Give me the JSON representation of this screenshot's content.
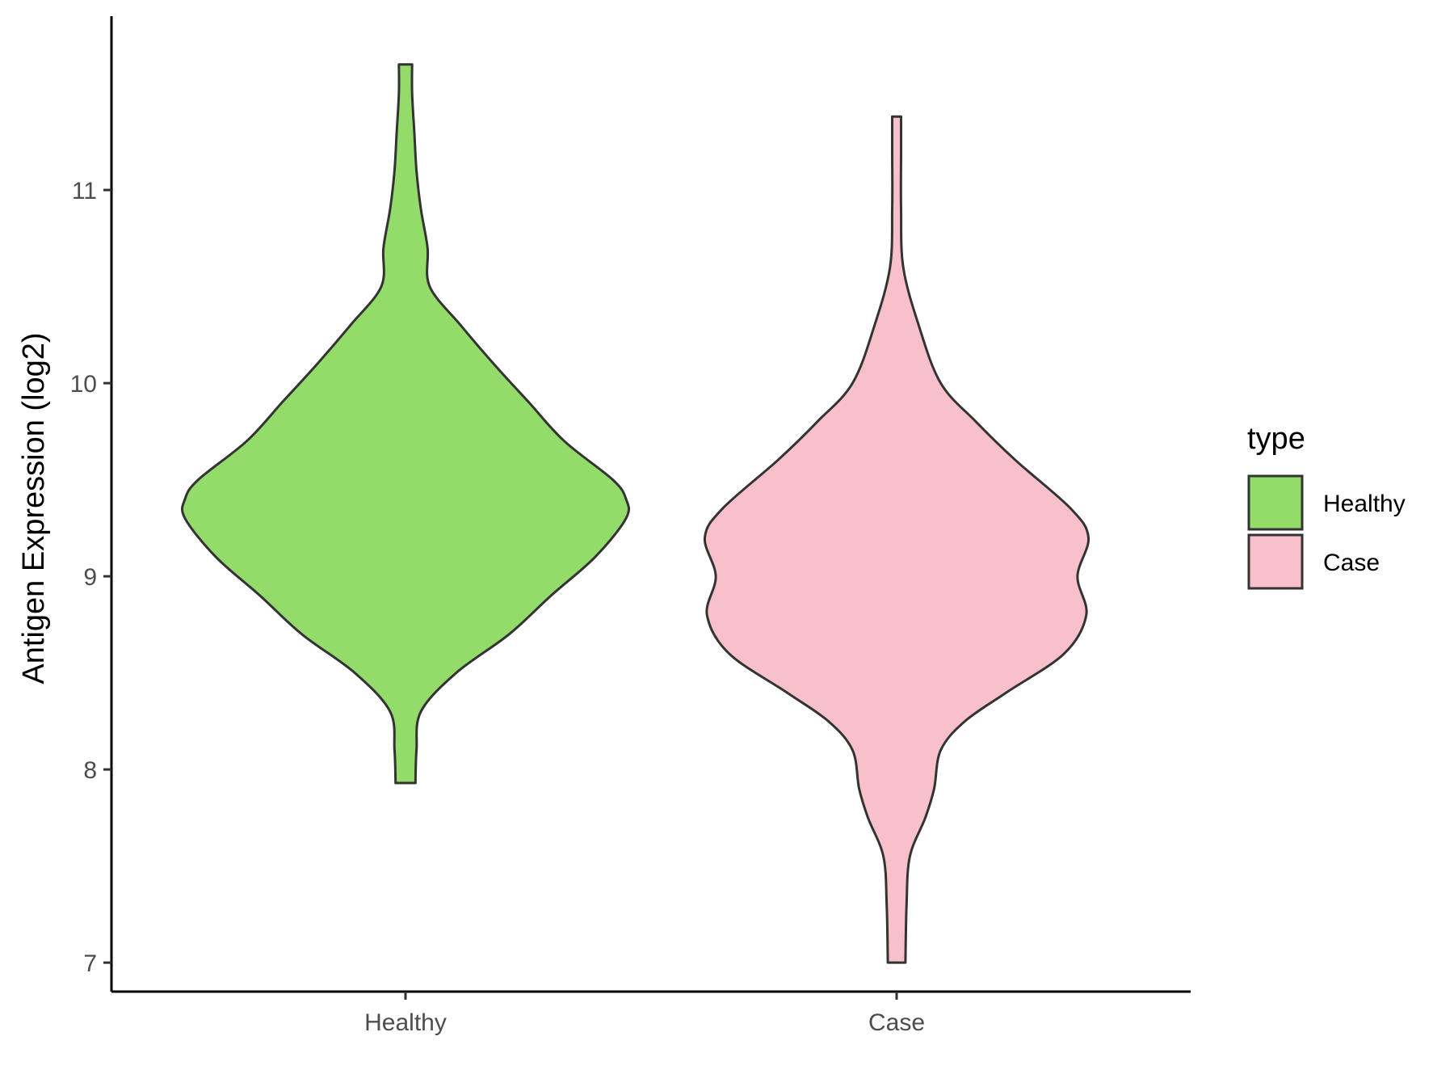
{
  "chart_data": {
    "type": "violin",
    "title": "",
    "xlabel": "",
    "ylabel": "Antigen Expression (log2)",
    "ylim": [
      6.85,
      11.9
    ],
    "yticks": [
      7,
      8,
      9,
      10,
      11
    ],
    "yticks_text": [
      "7",
      "8",
      "9",
      "10",
      "11"
    ],
    "categories": [
      "Healthy",
      "Case"
    ],
    "grid": false,
    "legend": {
      "title": "type",
      "position": "right",
      "entries": [
        "Healthy",
        "Case"
      ]
    },
    "series": [
      {
        "name": "Healthy",
        "color": "#93dc6a",
        "min": 7.93,
        "max": 11.65,
        "density": [
          [
            7.93,
            0.045
          ],
          [
            8.1,
            0.05
          ],
          [
            8.3,
            0.07
          ],
          [
            8.5,
            0.23
          ],
          [
            8.7,
            0.47
          ],
          [
            8.9,
            0.66
          ],
          [
            9.1,
            0.86
          ],
          [
            9.3,
            1.0
          ],
          [
            9.4,
            1.0
          ],
          [
            9.5,
            0.94
          ],
          [
            9.7,
            0.72
          ],
          [
            9.9,
            0.56
          ],
          [
            10.1,
            0.4
          ],
          [
            10.3,
            0.25
          ],
          [
            10.5,
            0.11
          ],
          [
            10.7,
            0.1
          ],
          [
            10.9,
            0.07
          ],
          [
            11.1,
            0.05
          ],
          [
            11.3,
            0.04
          ],
          [
            11.5,
            0.03
          ],
          [
            11.65,
            0.03
          ]
        ]
      },
      {
        "name": "Case",
        "color": "#f8c0cb",
        "min": 7.0,
        "max": 11.38,
        "density": [
          [
            7.0,
            0.04
          ],
          [
            7.3,
            0.045
          ],
          [
            7.55,
            0.06
          ],
          [
            7.75,
            0.13
          ],
          [
            7.9,
            0.17
          ],
          [
            8.1,
            0.2
          ],
          [
            8.25,
            0.31
          ],
          [
            8.4,
            0.5
          ],
          [
            8.6,
            0.76
          ],
          [
            8.8,
            0.86
          ],
          [
            9.0,
            0.82
          ],
          [
            9.2,
            0.87
          ],
          [
            9.35,
            0.79
          ],
          [
            9.6,
            0.54
          ],
          [
            9.8,
            0.36
          ],
          [
            10.0,
            0.2
          ],
          [
            10.3,
            0.1
          ],
          [
            10.6,
            0.03
          ],
          [
            10.9,
            0.02
          ],
          [
            11.2,
            0.02
          ],
          [
            11.38,
            0.02
          ]
        ]
      }
    ]
  }
}
